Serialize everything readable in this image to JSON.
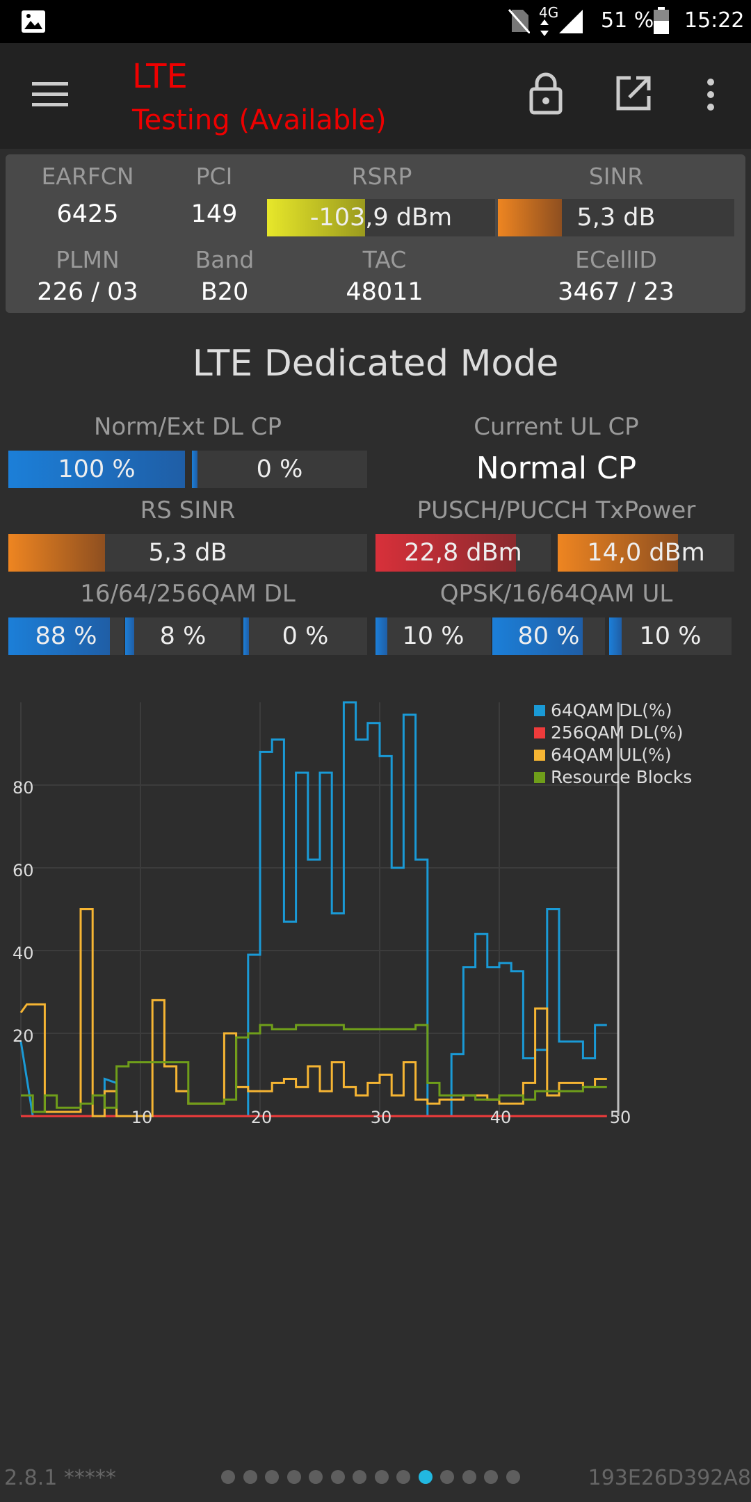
{
  "statusbar": {
    "network": "4G",
    "battery": "51 %",
    "time": "15:22"
  },
  "appbar": {
    "title": "LTE",
    "subtitle": "Testing (Available)"
  },
  "info": {
    "earfcn_label": "EARFCN",
    "earfcn": "6425",
    "pci_label": "PCI",
    "pci": "149",
    "rsrp_label": "RSRP",
    "rsrp": "-103,9 dBm",
    "rsrp_level": 0.43,
    "sinr_label": "SINR",
    "sinr": "5,3 dB",
    "sinr_level": 0.27,
    "plmn_label": "PLMN",
    "plmn": "226 / 03",
    "band_label": "Band",
    "band": "B20",
    "tac_label": "TAC",
    "tac": "48011",
    "ecellid_label": "ECellID",
    "ecellid": "3467 / 23"
  },
  "section_title": "LTE Dedicated Mode",
  "dedicated": {
    "cp_label": "Norm/Ext DL CP",
    "cp_norm": "100 %",
    "cp_norm_level": 1.0,
    "cp_ext": "0 %",
    "cp_ext_level": 0.0,
    "ul_cp_label": "Current UL CP",
    "ul_cp": "Normal CP",
    "rs_sinr_label": "RS SINR",
    "rs_sinr": "5,3 dB",
    "rs_sinr_level": 0.27,
    "txpower_label": "PUSCH/PUCCH TxPower",
    "pusch": "22,8 dBm",
    "pusch_level": 0.8,
    "pucch": "14,0 dBm",
    "pucch_level": 0.68,
    "dl_qam_label": "16/64/256QAM DL",
    "dl16": "88 %",
    "dl16_level": 0.88,
    "dl64": "8 %",
    "dl64_level": 0.08,
    "dl256": "0 %",
    "dl256_level": 0.0,
    "ul_qam_label": "QPSK/16/64QAM UL",
    "ulqpsk": "10 %",
    "ulqpsk_level": 0.1,
    "ul16": "80 %",
    "ul16_level": 0.8,
    "ul64": "10 %",
    "ul64_level": 0.1
  },
  "colors": {
    "s64dl": "#1a9ad6",
    "s256dl": "#ee3b3b",
    "s64ul": "#f6b533",
    "rb": "#6f9e1a"
  },
  "chart_data": {
    "type": "line",
    "ylim": [
      0,
      100
    ],
    "xlim": [
      0,
      50
    ],
    "x_ticks": [
      "10",
      "20",
      "30",
      "40",
      "50"
    ],
    "y_ticks": [
      "20",
      "40",
      "60",
      "80"
    ],
    "legend_position": "top-right",
    "series": [
      {
        "name": "64QAM DL(%)",
        "color": "#1a9ad6",
        "values": [
          [
            0,
            18
          ],
          [
            1,
            0
          ],
          [
            7,
            0
          ],
          [
            7,
            9
          ],
          [
            8,
            8
          ],
          [
            8,
            0
          ],
          [
            13,
            0
          ],
          [
            13,
            0
          ],
          [
            19,
            0
          ],
          [
            19,
            39
          ],
          [
            20,
            39
          ],
          [
            20,
            88
          ],
          [
            21,
            88
          ],
          [
            21,
            91
          ],
          [
            22,
            91
          ],
          [
            22,
            47
          ],
          [
            23,
            47
          ],
          [
            23,
            83
          ],
          [
            24,
            83
          ],
          [
            24,
            62
          ],
          [
            25,
            62
          ],
          [
            25,
            83
          ],
          [
            26,
            83
          ],
          [
            26,
            49
          ],
          [
            27,
            49
          ],
          [
            27,
            100
          ],
          [
            28,
            100
          ],
          [
            28,
            91
          ],
          [
            29,
            91
          ],
          [
            29,
            95
          ],
          [
            30,
            95
          ],
          [
            30,
            87
          ],
          [
            31,
            87
          ],
          [
            31,
            60
          ],
          [
            32,
            60
          ],
          [
            32,
            97
          ],
          [
            33,
            97
          ],
          [
            33,
            62
          ],
          [
            34,
            62
          ],
          [
            34,
            0
          ],
          [
            36,
            0
          ],
          [
            36,
            15
          ],
          [
            37,
            15
          ],
          [
            37,
            36
          ],
          [
            38,
            36
          ],
          [
            38,
            44
          ],
          [
            39,
            44
          ],
          [
            39,
            36
          ],
          [
            40,
            36
          ],
          [
            40,
            37
          ],
          [
            41,
            37
          ],
          [
            41,
            35
          ],
          [
            42,
            35
          ],
          [
            42,
            14
          ],
          [
            43,
            14
          ],
          [
            43,
            16
          ],
          [
            44,
            16
          ],
          [
            44,
            50
          ],
          [
            45,
            50
          ],
          [
            45,
            18
          ],
          [
            47,
            18
          ],
          [
            47,
            14
          ],
          [
            48,
            14
          ],
          [
            48,
            22
          ],
          [
            49,
            22
          ]
        ]
      },
      {
        "name": "256QAM DL(%)",
        "color": "#ee3b3b",
        "values": [
          [
            0,
            0
          ],
          [
            49,
            0
          ]
        ]
      },
      {
        "name": "64QAM UL(%)",
        "color": "#f6b533",
        "values": [
          [
            0,
            25
          ],
          [
            0.5,
            27
          ],
          [
            2,
            27
          ],
          [
            2,
            1
          ],
          [
            4,
            1
          ],
          [
            4,
            1
          ],
          [
            5,
            1
          ],
          [
            5,
            50
          ],
          [
            6,
            50
          ],
          [
            6,
            0
          ],
          [
            7,
            0
          ],
          [
            7,
            6
          ],
          [
            8,
            6
          ],
          [
            8,
            0
          ],
          [
            11,
            0
          ],
          [
            11,
            28
          ],
          [
            12,
            28
          ],
          [
            12,
            12
          ],
          [
            13,
            12
          ],
          [
            13,
            6
          ],
          [
            14,
            6
          ],
          [
            14,
            3
          ],
          [
            17,
            3
          ],
          [
            17,
            20
          ],
          [
            18,
            20
          ],
          [
            18,
            7
          ],
          [
            19,
            7
          ],
          [
            19,
            6
          ],
          [
            20,
            6
          ],
          [
            20,
            6
          ],
          [
            21,
            6
          ],
          [
            21,
            8
          ],
          [
            22,
            8
          ],
          [
            22,
            9
          ],
          [
            23,
            9
          ],
          [
            23,
            7
          ],
          [
            24,
            7
          ],
          [
            24,
            12
          ],
          [
            25,
            12
          ],
          [
            25,
            6
          ],
          [
            26,
            6
          ],
          [
            26,
            13
          ],
          [
            27,
            13
          ],
          [
            27,
            7
          ],
          [
            28,
            7
          ],
          [
            28,
            5
          ],
          [
            29,
            5
          ],
          [
            29,
            8
          ],
          [
            30,
            8
          ],
          [
            30,
            10
          ],
          [
            31,
            10
          ],
          [
            31,
            5
          ],
          [
            32,
            5
          ],
          [
            32,
            13
          ],
          [
            33,
            13
          ],
          [
            33,
            4
          ],
          [
            34,
            4
          ],
          [
            34,
            3
          ],
          [
            35,
            3
          ],
          [
            35,
            4
          ],
          [
            37,
            4
          ],
          [
            37,
            5
          ],
          [
            39,
            5
          ],
          [
            39,
            4
          ],
          [
            40,
            4
          ],
          [
            40,
            3
          ],
          [
            42,
            3
          ],
          [
            42,
            8
          ],
          [
            43,
            8
          ],
          [
            43,
            26
          ],
          [
            44,
            26
          ],
          [
            44,
            5
          ],
          [
            45,
            5
          ],
          [
            45,
            8
          ],
          [
            47,
            8
          ],
          [
            47,
            7
          ],
          [
            48,
            7
          ],
          [
            48,
            9
          ],
          [
            49,
            9
          ]
        ]
      },
      {
        "name": "Resource Blocks",
        "color": "#6f9e1a",
        "values": [
          [
            0,
            5
          ],
          [
            1,
            5
          ],
          [
            1,
            1
          ],
          [
            2,
            1
          ],
          [
            2,
            5
          ],
          [
            3,
            5
          ],
          [
            3,
            2
          ],
          [
            5,
            2
          ],
          [
            5,
            3
          ],
          [
            6,
            3
          ],
          [
            6,
            5
          ],
          [
            7,
            5
          ],
          [
            7,
            2
          ],
          [
            8,
            2
          ],
          [
            8,
            12
          ],
          [
            9,
            12
          ],
          [
            9,
            13
          ],
          [
            14,
            13
          ],
          [
            14,
            3
          ],
          [
            17,
            3
          ],
          [
            17,
            4
          ],
          [
            18,
            4
          ],
          [
            18,
            19
          ],
          [
            19,
            19
          ],
          [
            19,
            20
          ],
          [
            20,
            20
          ],
          [
            20,
            22
          ],
          [
            21,
            22
          ],
          [
            21,
            21
          ],
          [
            23,
            21
          ],
          [
            23,
            22
          ],
          [
            27,
            22
          ],
          [
            27,
            21
          ],
          [
            33,
            21
          ],
          [
            33,
            22
          ],
          [
            34,
            22
          ],
          [
            34,
            8
          ],
          [
            35,
            8
          ],
          [
            35,
            5
          ],
          [
            37,
            5
          ],
          [
            37,
            5
          ],
          [
            38,
            5
          ],
          [
            38,
            4
          ],
          [
            40,
            4
          ],
          [
            40,
            5
          ],
          [
            42,
            5
          ],
          [
            42,
            4
          ],
          [
            43,
            4
          ],
          [
            43,
            6
          ],
          [
            45,
            6
          ],
          [
            45,
            6
          ],
          [
            47,
            6
          ],
          [
            47,
            7
          ],
          [
            49,
            7
          ]
        ]
      }
    ]
  },
  "footer": {
    "version": "2.8.1 *****",
    "device_id": "193E26D392A8",
    "page_count": 14,
    "active_page": 9
  }
}
